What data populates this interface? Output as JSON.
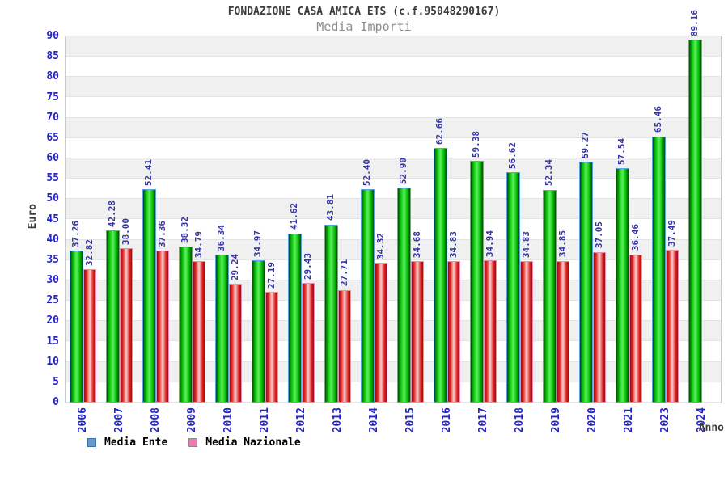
{
  "chart_data": {
    "type": "bar",
    "title": "FONDAZIONE CASA AMICA ETS (c.f.95048290167)",
    "subtitle": "Media Importi",
    "xlabel": "Anno",
    "ylabel": "Euro",
    "ylim": [
      0,
      90
    ],
    "ytick_step": 5,
    "grid": "horizontal-bands",
    "legend_position": "bottom-left",
    "tick_label_color": "#2424cc",
    "value_label_color": "#3535a5",
    "categories": [
      "2006",
      "2007",
      "2008",
      "2009",
      "2010",
      "2011",
      "2012",
      "2013",
      "2014",
      "2015",
      "2016",
      "2017",
      "2018",
      "2019",
      "2020",
      "2021",
      "2023",
      "2024"
    ],
    "series": [
      {
        "name": "Media Ente",
        "legend_color": "#6699cc",
        "legend_border": "#3a6ea8",
        "bar_gradient": [
          "#084808",
          "#00b800",
          "#5cf25c",
          "#00b800",
          "#084808"
        ],
        "bar_border": "#5ba3e0",
        "values": [
          37.26,
          42.28,
          52.41,
          38.32,
          36.34,
          34.97,
          41.62,
          43.81,
          52.4,
          52.9,
          62.66,
          59.38,
          56.62,
          52.34,
          59.27,
          57.54,
          65.46,
          89.16
        ]
      },
      {
        "name": "Media Nazionale",
        "legend_color": "#ee7bb0",
        "legend_border": "#8a8a8a",
        "bar_gradient": [
          "#8f1010",
          "#e42222",
          "#f6d0d0",
          "#e42222",
          "#8f1010"
        ],
        "bar_border": "#f08bb8",
        "values": [
          32.82,
          38.0,
          37.36,
          34.79,
          29.24,
          27.19,
          29.43,
          27.71,
          34.32,
          34.68,
          34.83,
          34.94,
          34.83,
          34.85,
          37.05,
          36.46,
          37.49,
          null
        ]
      }
    ]
  }
}
